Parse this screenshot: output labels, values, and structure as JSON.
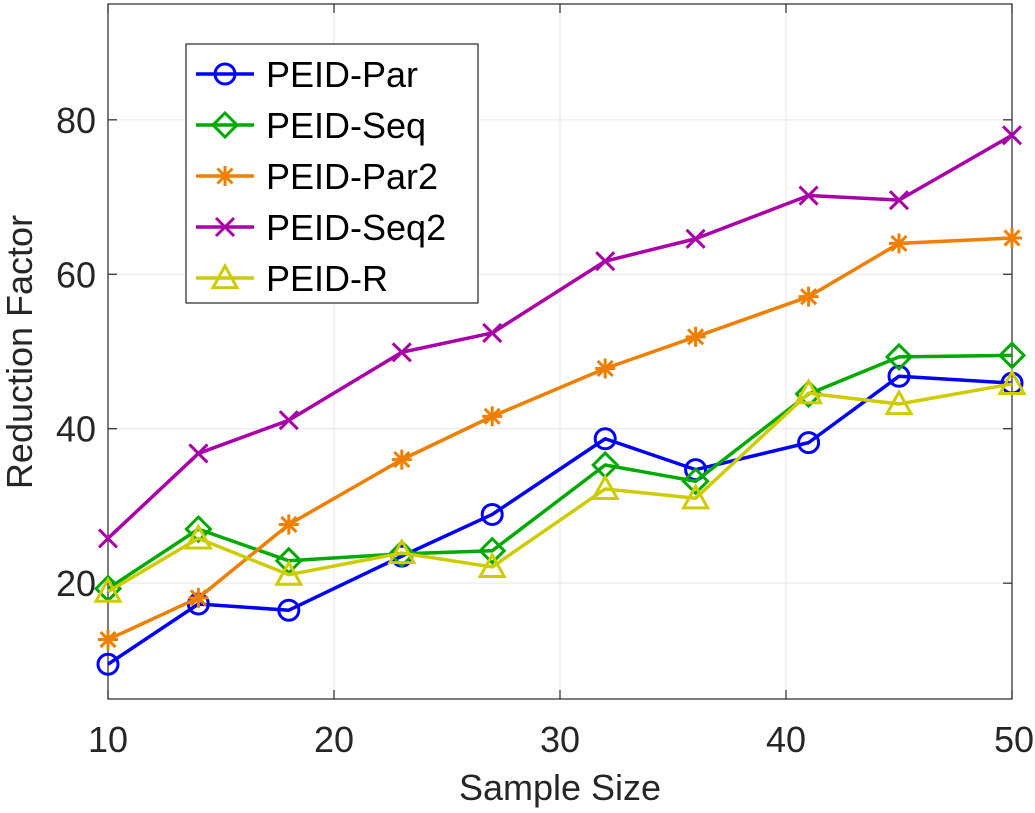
{
  "chart_data": {
    "type": "line",
    "title": "",
    "xlabel": "Sample Size",
    "ylabel": "Reduction Factor",
    "xlim": [
      10,
      50
    ],
    "ylim": [
      5,
      95
    ],
    "xticks": [
      10,
      20,
      30,
      40,
      50
    ],
    "yticks": [
      20,
      40,
      60,
      80
    ],
    "grid": true,
    "legend_position": "top-left",
    "x": [
      10,
      14,
      18,
      23,
      27,
      32,
      36,
      41,
      45,
      50
    ],
    "series": [
      {
        "name": "PEID-Par",
        "color": "#0000FF",
        "marker": "circle",
        "values": [
          9.5,
          17.3,
          16.5,
          23.5,
          28.9,
          38.7,
          34.7,
          38.2,
          46.8,
          45.9
        ]
      },
      {
        "name": "PEID-Seq",
        "color": "#00AA00",
        "marker": "diamond",
        "values": [
          19.3,
          27.0,
          22.9,
          23.8,
          24.2,
          35.3,
          33.2,
          44.5,
          49.3,
          49.5
        ]
      },
      {
        "name": "PEID-Par2",
        "color": "#EE7F00",
        "marker": "asterisk",
        "values": [
          12.7,
          18.1,
          27.6,
          36.0,
          41.6,
          47.8,
          51.9,
          57.1,
          64.0,
          64.7
        ]
      },
      {
        "name": "PEID-Seq2",
        "color": "#AA00AA",
        "marker": "x",
        "values": [
          25.8,
          36.8,
          41.1,
          49.9,
          52.4,
          61.7,
          64.6,
          70.2,
          69.6,
          78.0
        ]
      },
      {
        "name": "PEID-R",
        "color": "#CCCC00",
        "marker": "triangle",
        "values": [
          18.9,
          25.8,
          21.1,
          23.9,
          22.1,
          32.2,
          31.0,
          44.6,
          43.2,
          45.8
        ]
      }
    ]
  }
}
